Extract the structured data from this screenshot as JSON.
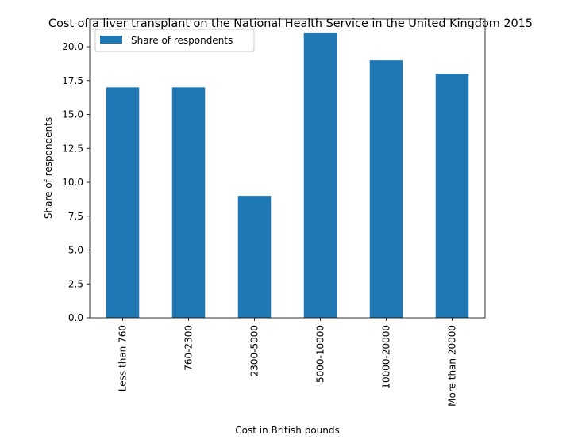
{
  "chart_data": {
    "type": "bar",
    "title": "Cost of a liver transplant on the National Health Service in the United Kingdom 2015",
    "xlabel": "Cost in British pounds",
    "ylabel": "Share of respondents",
    "categories": [
      "Less than 760",
      "760-2300",
      "2300-5000",
      "5000-10000",
      "10000-20000",
      "More than 20000"
    ],
    "series": [
      {
        "name": "Share of respondents",
        "values": [
          17,
          17,
          9,
          21,
          19,
          18
        ],
        "color": "#1f77b4"
      }
    ],
    "yticks": [
      "0.0",
      "2.5",
      "5.0",
      "7.5",
      "10.0",
      "12.5",
      "15.0",
      "17.5",
      "20.0"
    ],
    "ylim": [
      0,
      22.05
    ],
    "grid": false,
    "legend": "top-left"
  }
}
